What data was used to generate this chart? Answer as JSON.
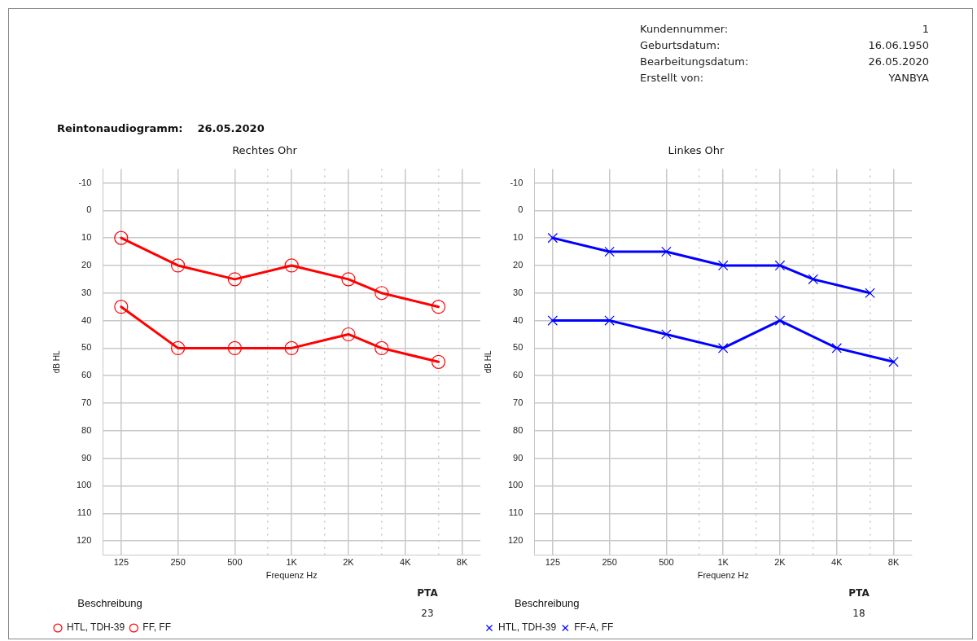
{
  "chart_data": [
    {
      "type": "line",
      "title": "Rechtes Ohr",
      "xlabel": "Frequenz Hz",
      "ylabel": "dB HL",
      "legend_title": "Beschreibung",
      "annotations": [
        "Kundennummer:",
        "1",
        "Geburtsdatum:",
        "16.06.1950",
        "Bearbeitungsdatum:",
        "26.05.2020",
        "Erstellt von:",
        "YANBYA",
        "Reintonaudiogramm:",
        "26.05.2020",
        "PTA",
        "23"
      ],
      "log": "x",
      "xlim": [
        100,
        10000
      ],
      "xticks": [
        125,
        250,
        500,
        {
          "value": 750,
          "label": null
        },
        {
          "value": 1000,
          "label": "1K"
        },
        {
          "value": 1500,
          "label": null
        },
        {
          "value": 2000,
          "label": "2K"
        },
        {
          "value": 3000,
          "label": null
        },
        {
          "value": 4000,
          "label": "4K"
        },
        {
          "value": 6000,
          "label": null
        },
        {
          "value": 8000,
          "label": "8K"
        }
      ],
      "ylim": [
        125,
        -15
      ],
      "yticks": [
        -10,
        0,
        10,
        20,
        30,
        40,
        50,
        60,
        70,
        80,
        90,
        100,
        110,
        120
      ],
      "grid": true,
      "legend": "bottom",
      "line_style": "solid",
      "series": [
        {
          "name": "HTL, TDH-39",
          "color": "#ff0000",
          "marker": "circle",
          "x": [
            125,
            250,
            500,
            1000,
            2000,
            3000,
            6000
          ],
          "values": [
            10,
            20,
            25,
            20,
            25,
            30,
            35
          ]
        },
        {
          "name": "FF, FF",
          "color": "#ff0000",
          "marker": "circle",
          "x": [
            125,
            250,
            500,
            1000,
            2000,
            3000,
            6000
          ],
          "values": [
            35,
            50,
            50,
            50,
            45,
            50,
            55
          ]
        }
      ]
    },
    {
      "type": "line",
      "title": "Linkes Ohr",
      "xlabel": "Frequenz Hz",
      "ylabel": "dB HL",
      "legend_title": "Beschreibung",
      "annotations": [
        "PTA",
        "18"
      ],
      "log": "x",
      "xlim": [
        100,
        10000
      ],
      "xticks": [
        125,
        250,
        500,
        {
          "value": 750,
          "label": null
        },
        {
          "value": 1000,
          "label": "1K"
        },
        {
          "value": 1500,
          "label": null
        },
        {
          "value": 2000,
          "label": "2K"
        },
        {
          "value": 3000,
          "label": null
        },
        {
          "value": 4000,
          "label": "4K"
        },
        {
          "value": 6000,
          "label": null
        },
        {
          "value": 8000,
          "label": "8K"
        }
      ],
      "ylim": [
        125,
        -15
      ],
      "yticks": [
        -10,
        0,
        10,
        20,
        30,
        40,
        50,
        60,
        70,
        80,
        90,
        100,
        110,
        120
      ],
      "grid": true,
      "legend": "bottom",
      "line_style": "solid",
      "series": [
        {
          "name": "HTL, TDH-39",
          "color": "#0000ff",
          "marker": "cross",
          "x": [
            125,
            250,
            500,
            1000,
            2000,
            3000,
            6000
          ],
          "values": [
            10,
            15,
            15,
            20,
            20,
            25,
            30
          ]
        },
        {
          "name": "FF-A, FF",
          "color": "#0000ff",
          "marker": "cross",
          "x": [
            125,
            250,
            500,
            1000,
            2000,
            4000,
            8000
          ],
          "values": [
            40,
            40,
            45,
            50,
            40,
            50,
            55
          ]
        }
      ]
    }
  ]
}
